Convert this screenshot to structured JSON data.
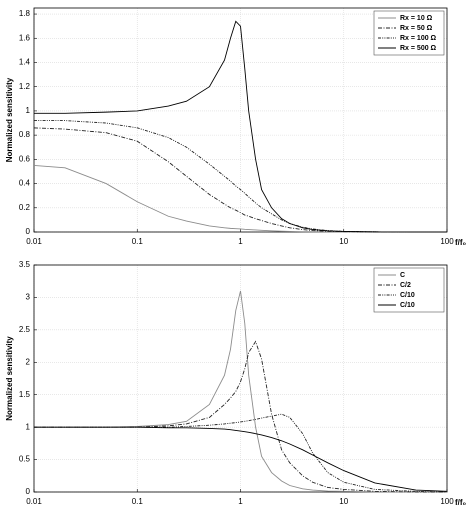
{
  "chart_data": [
    {
      "type": "line",
      "y_label": "Normalized sensitivity",
      "x_label": "f/f₀",
      "xscale": "log",
      "grid": true,
      "legend": "upper right",
      "x": [
        0.01,
        0.02,
        0.05,
        0.1,
        0.2,
        0.3,
        0.5,
        0.7,
        0.8,
        0.9,
        1,
        1.1,
        1.2,
        1.4,
        1.6,
        2,
        2.5,
        3,
        4,
        5,
        7,
        10,
        20,
        50,
        100
      ],
      "xlim": [
        0.01,
        100
      ],
      "xticks": [
        0.01,
        0.1,
        1,
        10,
        100
      ],
      "ylim": [
        0,
        1.85
      ],
      "yticks": [
        0,
        0.2,
        0.4,
        0.6,
        0.8,
        1,
        1.2,
        1.4,
        1.6,
        1.8
      ],
      "series": [
        {
          "name": "Rx = 10 Ω",
          "color": "#8c8c8c",
          "dash": "solid",
          "values": [
            0.55,
            0.53,
            0.4,
            0.25,
            0.13,
            0.09,
            0.05,
            0.035,
            0.03,
            0.027,
            0.025,
            0.022,
            0.02,
            0.017,
            0.014,
            0.01,
            0.007,
            0.005,
            0.003,
            0.002,
            0.001,
            0,
            0,
            0,
            0
          ]
        },
        {
          "name": "Rx = 50 Ω",
          "color": "#222222",
          "dash": "dashdot",
          "values": [
            0.86,
            0.85,
            0.82,
            0.75,
            0.58,
            0.46,
            0.31,
            0.23,
            0.2,
            0.18,
            0.16,
            0.14,
            0.13,
            0.11,
            0.095,
            0.07,
            0.05,
            0.035,
            0.02,
            0.012,
            0.006,
            0.003,
            0.001,
            0,
            0
          ]
        },
        {
          "name": "Rx = 100 Ω",
          "color": "#222222",
          "dash": "dashdotdot",
          "values": [
            0.92,
            0.92,
            0.9,
            0.86,
            0.78,
            0.7,
            0.56,
            0.46,
            0.42,
            0.38,
            0.35,
            0.32,
            0.29,
            0.24,
            0.2,
            0.15,
            0.1,
            0.07,
            0.04,
            0.025,
            0.012,
            0.005,
            0.001,
            0,
            0
          ]
        },
        {
          "name": "Rx = 500 Ω",
          "color": "#000000",
          "dash": "solid",
          "values": [
            0.98,
            0.98,
            0.99,
            1.0,
            1.04,
            1.08,
            1.2,
            1.42,
            1.6,
            1.74,
            1.7,
            1.35,
            1.0,
            0.6,
            0.35,
            0.2,
            0.11,
            0.07,
            0.035,
            0.02,
            0.01,
            0.005,
            0.001,
            0,
            0
          ]
        }
      ]
    },
    {
      "type": "line",
      "y_label": "Normalized sensitivity",
      "x_label": "f/f₀",
      "xscale": "log",
      "grid": true,
      "legend": "upper right",
      "x": [
        0.01,
        0.02,
        0.05,
        0.1,
        0.2,
        0.3,
        0.5,
        0.7,
        0.8,
        0.9,
        1,
        1.1,
        1.2,
        1.4,
        1.6,
        2,
        2.5,
        3,
        4,
        5,
        7,
        10,
        20,
        50,
        100
      ],
      "xlim": [
        0.01,
        100
      ],
      "xticks": [
        0.01,
        0.1,
        1,
        10,
        100
      ],
      "ylim": [
        0,
        3.5
      ],
      "yticks": [
        0,
        0.5,
        1,
        1.5,
        2,
        2.5,
        3,
        3.5
      ],
      "series": [
        {
          "name": "C",
          "color": "#8c8c8c",
          "dash": "solid",
          "values": [
            1,
            1,
            1,
            1.01,
            1.04,
            1.09,
            1.35,
            1.8,
            2.2,
            2.8,
            3.1,
            2.6,
            1.8,
            1.0,
            0.55,
            0.3,
            0.17,
            0.1,
            0.05,
            0.03,
            0.015,
            0.01,
            0.002,
            0,
            0
          ]
        },
        {
          "name": "C/2",
          "color": "#222222",
          "dash": "dashdot",
          "values": [
            1,
            1,
            1,
            1,
            1.02,
            1.05,
            1.15,
            1.35,
            1.45,
            1.55,
            1.7,
            1.9,
            2.15,
            2.32,
            2.05,
            1.2,
            0.65,
            0.45,
            0.25,
            0.15,
            0.07,
            0.04,
            0.01,
            0,
            0
          ]
        },
        {
          "name": "C/10",
          "color": "#222222",
          "dash": "dashdotdot",
          "values": [
            1,
            1,
            1,
            1,
            1,
            1.01,
            1.03,
            1.05,
            1.06,
            1.07,
            1.08,
            1.09,
            1.1,
            1.12,
            1.14,
            1.17,
            1.2,
            1.15,
            0.9,
            0.6,
            0.3,
            0.15,
            0.04,
            0.01,
            0
          ]
        },
        {
          "name": "C/10",
          "color": "#000000",
          "dash": "solid",
          "values": [
            1,
            1,
            1,
            1,
            0.99,
            0.99,
            0.98,
            0.97,
            0.96,
            0.95,
            0.94,
            0.93,
            0.92,
            0.9,
            0.88,
            0.84,
            0.79,
            0.74,
            0.65,
            0.57,
            0.45,
            0.33,
            0.14,
            0.03,
            0.01
          ]
        }
      ]
    }
  ]
}
